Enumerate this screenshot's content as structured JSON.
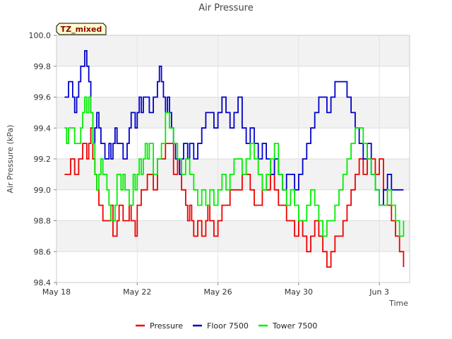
{
  "chart_data": {
    "type": "line",
    "title": "Air Pressure",
    "xlabel": "Time",
    "ylabel": "Air Pressure (kPa)",
    "tag": "TZ_mixed",
    "ylim": [
      98.4,
      100.0
    ],
    "yticks": [
      "98.4",
      "98.6",
      "98.8",
      "99.0",
      "99.2",
      "99.4",
      "99.6",
      "99.8",
      "100.0"
    ],
    "xlim": [
      0,
      17.5
    ],
    "xticks": [
      {
        "day": 0,
        "label": "May 18"
      },
      {
        "day": 4,
        "label": "May 22"
      },
      {
        "day": 8,
        "label": "May 26"
      },
      {
        "day": 12,
        "label": "May 30"
      },
      {
        "day": 16,
        "label": "Jun 3"
      }
    ],
    "grid": true,
    "legend_position": "bottom",
    "series": [
      {
        "name": "Pressure",
        "color": "#ee0000",
        "x": [
          0.4,
          0.5,
          0.7,
          0.9,
          1.0,
          1.1,
          1.3,
          1.5,
          1.6,
          1.7,
          1.8,
          1.9,
          2.0,
          2.1,
          2.2,
          2.3,
          2.5,
          2.7,
          2.8,
          2.9,
          3.0,
          3.1,
          3.3,
          3.5,
          3.6,
          3.7,
          3.8,
          3.9,
          4.0,
          4.2,
          4.3,
          4.5,
          4.6,
          4.8,
          5.0,
          5.2,
          5.4,
          5.6,
          5.8,
          6.0,
          6.1,
          6.2,
          6.4,
          6.5,
          6.6,
          6.7,
          6.8,
          6.9,
          7.0,
          7.2,
          7.4,
          7.5,
          7.6,
          7.8,
          8.0,
          8.2,
          8.4,
          8.6,
          8.8,
          9.0,
          9.2,
          9.4,
          9.6,
          9.8,
          10.0,
          10.2,
          10.4,
          10.6,
          10.8,
          11.0,
          11.2,
          11.4,
          11.6,
          11.8,
          12.0,
          12.2,
          12.4,
          12.6,
          12.8,
          13.0,
          13.2,
          13.4,
          13.6,
          13.8,
          14.0,
          14.2,
          14.4,
          14.6,
          14.8,
          15.0,
          15.2,
          15.4,
          15.6,
          15.8,
          16.0,
          16.2,
          16.4,
          16.6,
          16.8,
          17.0,
          17.2
        ],
        "y": [
          99.1,
          99.1,
          99.2,
          99.1,
          99.1,
          99.2,
          99.3,
          99.2,
          99.3,
          99.4,
          99.2,
          99.1,
          99.0,
          98.9,
          98.9,
          98.8,
          98.8,
          98.9,
          98.7,
          98.7,
          98.8,
          98.9,
          98.8,
          98.8,
          98.9,
          98.8,
          98.8,
          98.7,
          98.9,
          99.0,
          99.0,
          99.1,
          99.1,
          99.0,
          99.2,
          99.2,
          99.3,
          99.3,
          99.1,
          99.2,
          99.1,
          99.0,
          98.9,
          98.8,
          98.9,
          98.8,
          98.7,
          98.7,
          98.8,
          98.7,
          98.8,
          98.9,
          98.8,
          98.7,
          98.8,
          98.9,
          98.9,
          99.0,
          99.0,
          99.0,
          99.1,
          99.1,
          99.0,
          98.9,
          98.9,
          99.0,
          99.0,
          99.1,
          99.0,
          98.9,
          98.9,
          98.8,
          98.8,
          98.7,
          98.8,
          98.7,
          98.6,
          98.7,
          98.8,
          98.7,
          98.6,
          98.5,
          98.6,
          98.7,
          98.7,
          98.8,
          98.9,
          99.0,
          99.1,
          99.2,
          99.1,
          99.2,
          99.2,
          99.1,
          99.2,
          99.0,
          98.9,
          98.8,
          98.7,
          98.6,
          98.5
        ]
      },
      {
        "name": "Floor 7500",
        "color": "#0000cc",
        "x": [
          0.4,
          0.5,
          0.6,
          0.8,
          0.9,
          1.0,
          1.1,
          1.2,
          1.3,
          1.4,
          1.5,
          1.6,
          1.7,
          1.8,
          1.9,
          2.0,
          2.1,
          2.2,
          2.3,
          2.4,
          2.5,
          2.6,
          2.7,
          2.8,
          2.9,
          3.0,
          3.1,
          3.2,
          3.3,
          3.4,
          3.5,
          3.6,
          3.7,
          3.8,
          3.9,
          4.0,
          4.1,
          4.2,
          4.3,
          4.5,
          4.6,
          4.8,
          5.0,
          5.1,
          5.2,
          5.3,
          5.4,
          5.5,
          5.6,
          5.7,
          5.8,
          5.9,
          6.0,
          6.1,
          6.2,
          6.3,
          6.4,
          6.5,
          6.6,
          6.8,
          7.0,
          7.2,
          7.4,
          7.6,
          7.8,
          8.0,
          8.2,
          8.4,
          8.6,
          8.8,
          9.0,
          9.2,
          9.4,
          9.6,
          9.8,
          10.0,
          10.2,
          10.4,
          10.6,
          10.8,
          11.0,
          11.2,
          11.4,
          11.6,
          11.8,
          12.0,
          12.2,
          12.4,
          12.6,
          12.8,
          13.0,
          13.2,
          13.4,
          13.6,
          13.8,
          14.0,
          14.2,
          14.4,
          14.6,
          14.8,
          15.0,
          15.2,
          15.4,
          15.6,
          15.8,
          16.0,
          16.2,
          16.4,
          16.6,
          16.8,
          17.0,
          17.2
        ],
        "y": [
          99.6,
          99.6,
          99.7,
          99.6,
          99.5,
          99.6,
          99.7,
          99.8,
          99.8,
          99.9,
          99.8,
          99.7,
          99.5,
          99.3,
          99.4,
          99.5,
          99.4,
          99.3,
          99.3,
          99.2,
          99.2,
          99.3,
          99.2,
          99.3,
          99.4,
          99.3,
          99.3,
          99.3,
          99.2,
          99.2,
          99.3,
          99.4,
          99.5,
          99.5,
          99.4,
          99.5,
          99.6,
          99.5,
          99.6,
          99.6,
          99.5,
          99.6,
          99.7,
          99.8,
          99.7,
          99.6,
          99.5,
          99.6,
          99.5,
          99.4,
          99.3,
          99.2,
          99.2,
          99.1,
          99.2,
          99.3,
          99.3,
          99.2,
          99.3,
          99.2,
          99.3,
          99.4,
          99.5,
          99.5,
          99.4,
          99.5,
          99.6,
          99.5,
          99.4,
          99.5,
          99.6,
          99.4,
          99.3,
          99.4,
          99.3,
          99.2,
          99.3,
          99.2,
          99.1,
          99.2,
          99.1,
          99.0,
          99.1,
          99.1,
          99.0,
          99.1,
          99.2,
          99.3,
          99.4,
          99.5,
          99.6,
          99.6,
          99.5,
          99.6,
          99.7,
          99.7,
          99.7,
          99.6,
          99.5,
          99.4,
          99.3,
          99.2,
          99.3,
          99.1,
          99.0,
          98.9,
          99.0,
          99.1,
          99.0,
          99.0,
          99.0,
          99.0
        ]
      },
      {
        "name": "Tower 7500",
        "color": "#00ee00",
        "x": [
          0.4,
          0.5,
          0.6,
          0.8,
          0.9,
          1.0,
          1.2,
          1.3,
          1.4,
          1.5,
          1.6,
          1.7,
          1.8,
          1.9,
          2.0,
          2.1,
          2.2,
          2.3,
          2.4,
          2.5,
          2.6,
          2.7,
          2.8,
          2.9,
          3.0,
          3.1,
          3.2,
          3.3,
          3.4,
          3.5,
          3.6,
          3.7,
          3.8,
          3.9,
          4.0,
          4.1,
          4.2,
          4.3,
          4.4,
          4.5,
          4.6,
          4.8,
          5.0,
          5.2,
          5.4,
          5.6,
          5.8,
          6.0,
          6.2,
          6.4,
          6.6,
          6.8,
          7.0,
          7.2,
          7.4,
          7.6,
          7.8,
          8.0,
          8.2,
          8.4,
          8.6,
          8.8,
          9.0,
          9.2,
          9.4,
          9.6,
          9.8,
          10.0,
          10.2,
          10.4,
          10.6,
          10.8,
          11.0,
          11.2,
          11.4,
          11.6,
          11.8,
          12.0,
          12.2,
          12.4,
          12.6,
          12.8,
          13.0,
          13.2,
          13.4,
          13.6,
          13.8,
          14.0,
          14.2,
          14.4,
          14.6,
          14.8,
          15.0,
          15.2,
          15.4,
          15.6,
          15.8,
          16.0,
          16.2,
          16.4,
          16.6,
          16.8,
          17.0,
          17.2
        ],
        "y": [
          99.4,
          99.3,
          99.4,
          99.4,
          99.3,
          99.3,
          99.4,
          99.5,
          99.6,
          99.5,
          99.6,
          99.5,
          99.3,
          99.1,
          99.0,
          99.1,
          99.2,
          99.1,
          99.1,
          99.0,
          98.9,
          98.8,
          98.8,
          98.9,
          99.1,
          99.1,
          99.0,
          99.1,
          99.0,
          99.0,
          98.9,
          98.9,
          99.1,
          99.0,
          99.1,
          99.2,
          99.1,
          99.2,
          99.3,
          99.2,
          99.3,
          99.1,
          99.2,
          99.3,
          99.5,
          99.4,
          99.3,
          99.2,
          99.1,
          99.2,
          99.1,
          99.0,
          98.9,
          99.0,
          98.9,
          99.0,
          98.9,
          99.0,
          99.1,
          99.0,
          99.1,
          99.2,
          99.2,
          99.1,
          99.2,
          99.3,
          99.2,
          99.1,
          99.0,
          99.1,
          99.2,
          99.3,
          99.1,
          99.0,
          98.9,
          99.0,
          98.9,
          98.8,
          98.8,
          98.9,
          99.0,
          98.9,
          98.8,
          98.7,
          98.8,
          98.8,
          98.9,
          99.0,
          99.1,
          99.2,
          99.3,
          99.4,
          99.4,
          99.3,
          99.2,
          99.1,
          99.0,
          98.9,
          98.9,
          99.0,
          98.9,
          98.8,
          98.7,
          98.8
        ]
      }
    ]
  }
}
